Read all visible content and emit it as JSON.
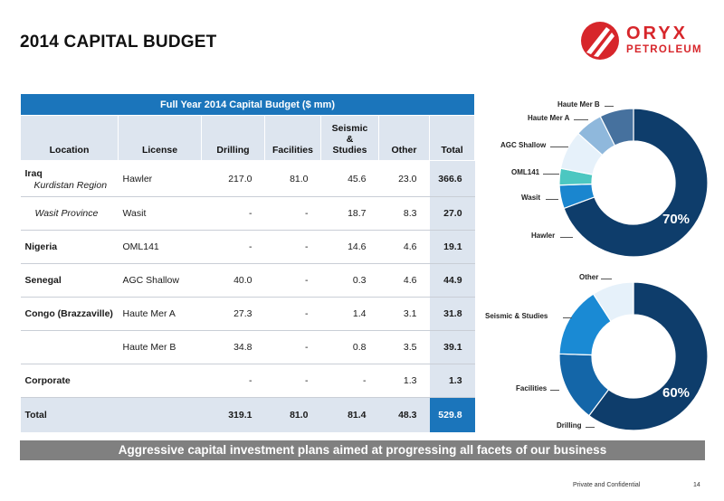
{
  "page": {
    "title": "2014 CAPITAL BUDGET",
    "footer": "Private and Confidential",
    "page_number": "14",
    "banner": "Aggressive capital investment plans aimed at progressing all facets of our business"
  },
  "logo": {
    "name": "ORYX",
    "sub": "PETROLEUM",
    "brand_color": "#d7262b"
  },
  "table": {
    "caption": "Full Year 2014 Capital Budget ($ mm)",
    "headers": {
      "location": "Location",
      "license": "License",
      "drilling": "Drilling",
      "facilities": "Facilities",
      "seismic": "Seismic & Studies",
      "other": "Other",
      "total": "Total"
    },
    "rows": [
      {
        "location": "Iraq",
        "sublocation": "Kurdistan Region",
        "license": "Hawler",
        "drilling": "217.0",
        "facilities": "81.0",
        "seismic": "45.6",
        "other": "23.0",
        "total": "366.6"
      },
      {
        "location": "",
        "sublocation": "Wasit Province",
        "license": "Wasit",
        "drilling": "-",
        "facilities": "-",
        "seismic": "18.7",
        "other": "8.3",
        "total": "27.0"
      },
      {
        "location": "Nigeria",
        "sublocation": "",
        "license": "OML141",
        "drilling": "-",
        "facilities": "-",
        "seismic": "14.6",
        "other": "4.6",
        "total": "19.1"
      },
      {
        "location": "Senegal",
        "sublocation": "",
        "license": "AGC Shallow",
        "drilling": "40.0",
        "facilities": "-",
        "seismic": "0.3",
        "other": "4.6",
        "total": "44.9"
      },
      {
        "location": "Congo (Brazzaville)",
        "sublocation": "",
        "license": "Haute Mer A",
        "drilling": "27.3",
        "facilities": "-",
        "seismic": "1.4",
        "other": "3.1",
        "total": "31.8"
      },
      {
        "location": "",
        "sublocation": "",
        "license": "Haute Mer B",
        "drilling": "34.8",
        "facilities": "-",
        "seismic": "0.8",
        "other": "3.5",
        "total": "39.1"
      },
      {
        "location": "Corporate",
        "sublocation": "",
        "license": "",
        "drilling": "-",
        "facilities": "-",
        "seismic": "-",
        "other": "1.3",
        "total": "1.3"
      }
    ],
    "total_row": {
      "location": "Total",
      "license": "",
      "drilling": "319.1",
      "facilities": "81.0",
      "seismic": "81.4",
      "other": "48.3",
      "total": "529.8"
    },
    "colors": {
      "caption_bg": "#1b75bb",
      "header_bg": "#dde5ef"
    }
  },
  "chart_data": [
    {
      "type": "pie",
      "donut": true,
      "categories": [
        "Hawler",
        "Wasit",
        "OML141",
        "AGC Shallow",
        "Haute Mer A",
        "Haute Mer B"
      ],
      "values": [
        366.6,
        27.0,
        19.1,
        44.9,
        31.8,
        39.1
      ],
      "colors": [
        "#0e3d6b",
        "#1a86cf",
        "#4cc7c1",
        "#e6f1fa",
        "#8fb8dc",
        "#46719e"
      ],
      "center_label": "70%"
    },
    {
      "type": "pie",
      "donut": true,
      "categories": [
        "Drilling",
        "Facilities",
        "Seismic & Studies",
        "Other"
      ],
      "values": [
        319.1,
        81.0,
        81.4,
        48.3
      ],
      "colors": [
        "#0e3d6b",
        "#1466a8",
        "#1a8ad4",
        "#e6f1fa"
      ],
      "center_label": "60%"
    }
  ]
}
